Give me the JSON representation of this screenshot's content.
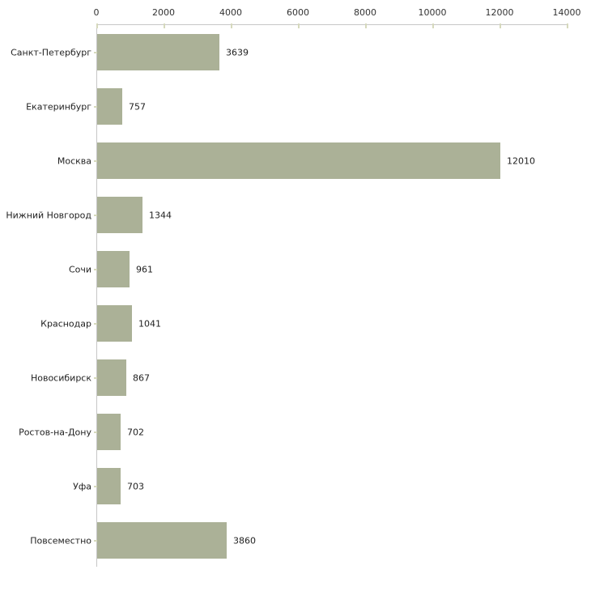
{
  "chart_data": {
    "type": "bar",
    "orientation": "horizontal",
    "title": "",
    "xlabel": "",
    "ylabel": "",
    "categories": [
      "Санкт-Петербург",
      "Екатеринбург",
      "Москва",
      "Нижний Новгород",
      "Сочи",
      "Краснодар",
      "Новосибирск",
      "Ростов-на-Дону",
      "Уфа",
      "Повсеместно"
    ],
    "values": [
      3639,
      757,
      12010,
      1344,
      961,
      1041,
      867,
      702,
      703,
      3860
    ],
    "value_labels": [
      "3639",
      "757",
      "12010",
      "1344",
      "961",
      "1041",
      "867",
      "702",
      "703",
      "3860"
    ],
    "xlim": [
      0,
      14000
    ],
    "x_ticks": [
      0,
      2000,
      4000,
      6000,
      8000,
      10000,
      12000,
      14000
    ],
    "x_tick_labels": [
      "0",
      "2000",
      "4000",
      "6000",
      "8000",
      "10000",
      "12000",
      "14000"
    ],
    "grid": false,
    "legend": null,
    "colors": {
      "bar": "#abb197",
      "axis_line": "#c6c6c6",
      "tick_mark": "#d6d9bd",
      "text": "#222222",
      "background": "#ffffff"
    }
  }
}
